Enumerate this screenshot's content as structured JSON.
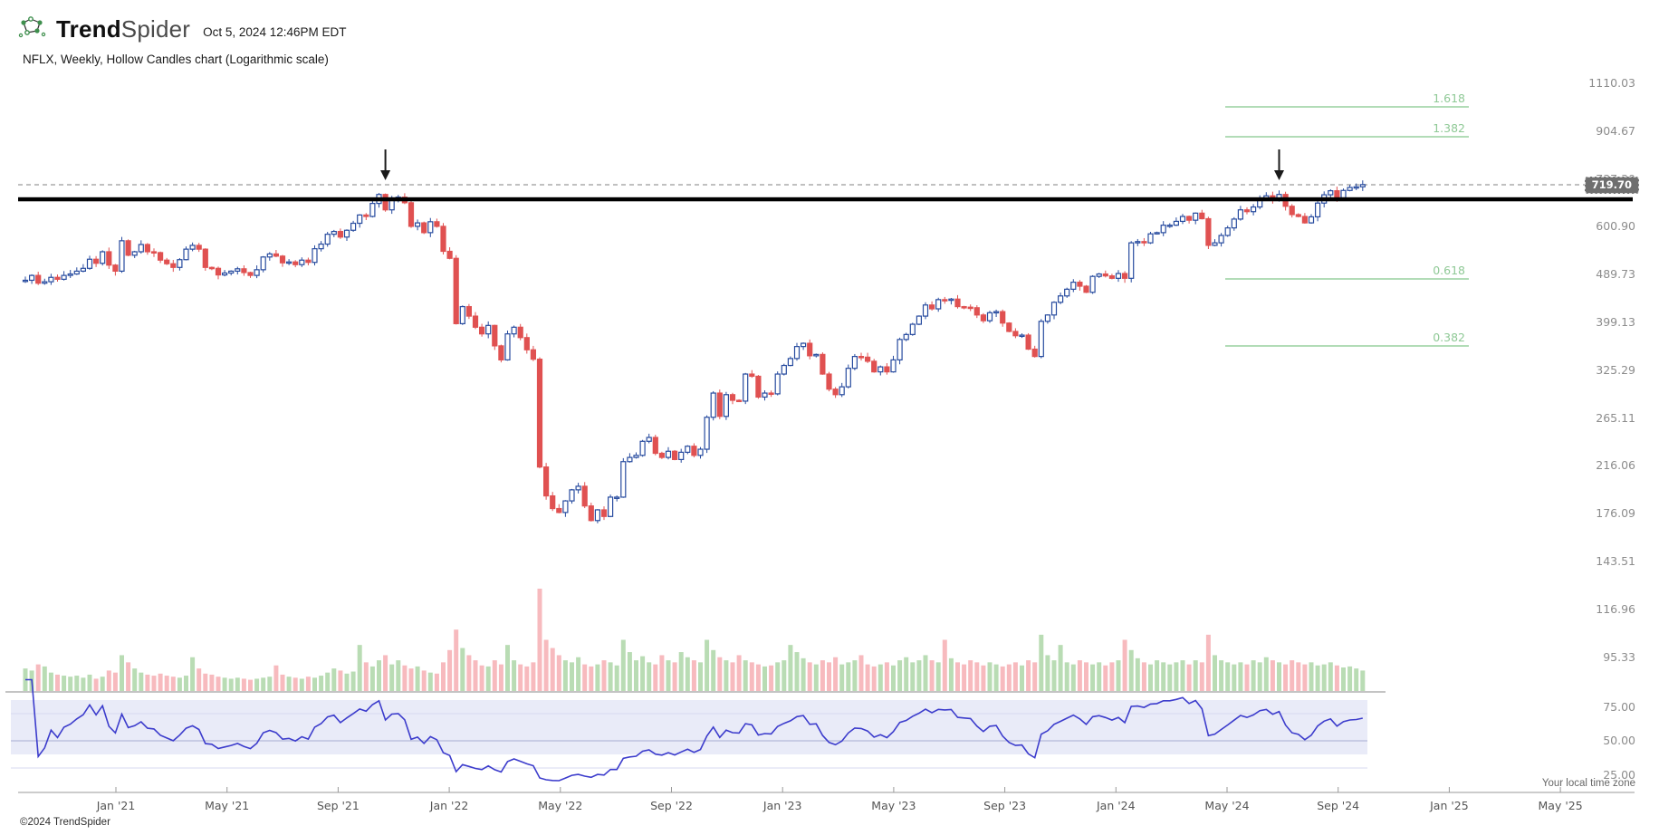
{
  "header": {
    "logo_trend": "Trend",
    "logo_spider": "Spider",
    "timestamp": "Oct 5, 2024 12:46PM EDT",
    "subtitle": "NFLX, Weekly, Hollow Candles chart (Logarithmic scale)"
  },
  "footer": {
    "timezone_note": "Your local time zone",
    "copyright": "©2024 TrendSpider"
  },
  "chart_data": {
    "type": "candlestick+volume+rsi",
    "symbol": "NFLX",
    "timeframe": "Weekly",
    "chart_style": "Hollow Candles",
    "scale": "Logarithmic",
    "last_price_label": "719.70",
    "price_axis_labels": [
      "1110.03",
      "904.67",
      "737.30",
      "600.90",
      "489.73",
      "399.13",
      "325.29",
      "265.11",
      "216.06",
      "176.09",
      "143.51",
      "116.96",
      "95.33"
    ],
    "rsi_axis_labels": [
      "75.00",
      "50.00",
      "25.00"
    ],
    "x_axis_labels": [
      "Jan '21",
      "May '21",
      "Sep '21",
      "Jan '22",
      "May '22",
      "Sep '22",
      "Jan '23",
      "May '23",
      "Sep '23",
      "Jan '24",
      "May '24",
      "Sep '24",
      "Jan '25",
      "May '25"
    ],
    "fib_levels": [
      "1.618",
      "1.382",
      "0.618",
      "0.382"
    ],
    "annotations": {
      "down_arrows_week_index": [
        56,
        195
      ],
      "horizontal_black_line": true,
      "last_price_dashed_line": true
    },
    "rsi_period": 14,
    "colors": {
      "candle_up": "#274b9f",
      "candle_down": "#e05151",
      "volume_up": "#b9dcb4",
      "volume_down": "#f7babe",
      "fib_line": "#a7d7ad",
      "fib_text": "#8fc996",
      "rsi_line": "#3c3ccc",
      "rsi_band": "#e9ebf8",
      "dashed_line": "#ababab",
      "black_line": "#000000"
    },
    "closes": [
      478,
      488,
      472,
      475,
      484,
      480,
      488,
      491,
      497,
      503,
      523,
      514,
      540,
      510,
      497,
      566,
      532,
      540,
      557,
      540,
      538,
      521,
      513,
      505,
      522,
      546,
      555,
      546,
      505,
      503,
      489,
      493,
      497,
      502,
      494,
      488,
      500,
      528,
      535,
      530,
      515,
      517,
      511,
      521,
      516,
      547,
      558,
      582,
      589,
      575,
      592,
      610,
      632,
      628,
      664,
      690,
      646,
      679,
      682,
      666,
      602,
      611,
      586,
      614,
      602,
      541,
      525,
      397,
      427,
      410,
      391,
      380,
      394,
      361,
      340,
      380,
      391,
      374,
      355,
      341,
      215,
      190,
      180,
      177,
      186,
      195,
      198,
      182,
      171,
      179,
      174,
      189,
      189,
      220,
      224,
      226,
      240,
      244,
      228,
      224,
      230,
      222,
      229,
      235,
      226,
      232,
      266,
      295,
      267,
      293,
      286,
      285,
      320,
      317,
      290,
      295,
      294,
      320,
      332,
      342,
      360,
      365,
      346,
      348,
      320,
      300,
      293,
      303,
      328,
      345,
      344,
      338,
      323,
      330,
      323,
      340,
      371,
      379,
      396,
      410,
      430,
      423,
      440,
      439,
      441,
      427,
      426,
      425,
      412,
      402,
      416,
      418,
      398,
      384,
      377,
      378,
      356,
      345,
      401,
      412,
      435,
      447,
      460,
      474,
      466,
      454,
      486,
      491,
      487,
      482,
      492,
      482,
      561,
      564,
      561,
      583,
      586,
      605,
      605,
      615,
      628,
      618,
      637,
      622,
      555,
      561,
      579,
      598,
      621,
      646,
      641,
      654,
      679,
      686,
      675,
      690,
      656,
      633,
      628,
      611,
      627,
      665,
      689,
      701,
      680,
      702,
      711,
      713,
      719.7
    ],
    "volumes": [
      0.22,
      0.2,
      0.26,
      0.24,
      0.18,
      0.16,
      0.15,
      0.14,
      0.15,
      0.13,
      0.16,
      0.12,
      0.14,
      0.2,
      0.18,
      0.35,
      0.28,
      0.22,
      0.18,
      0.16,
      0.15,
      0.17,
      0.15,
      0.14,
      0.13,
      0.15,
      0.33,
      0.22,
      0.17,
      0.16,
      0.14,
      0.13,
      0.12,
      0.13,
      0.12,
      0.11,
      0.12,
      0.13,
      0.14,
      0.25,
      0.16,
      0.14,
      0.13,
      0.12,
      0.14,
      0.13,
      0.15,
      0.18,
      0.22,
      0.2,
      0.17,
      0.19,
      0.45,
      0.28,
      0.24,
      0.3,
      0.35,
      0.26,
      0.3,
      0.25,
      0.22,
      0.24,
      0.2,
      0.18,
      0.17,
      0.28,
      0.4,
      0.6,
      0.42,
      0.35,
      0.3,
      0.25,
      0.24,
      0.3,
      0.26,
      0.45,
      0.3,
      0.26,
      0.24,
      0.28,
      1.0,
      0.5,
      0.42,
      0.35,
      0.3,
      0.28,
      0.33,
      0.26,
      0.24,
      0.26,
      0.3,
      0.28,
      0.25,
      0.5,
      0.38,
      0.3,
      0.34,
      0.28,
      0.26,
      0.35,
      0.3,
      0.28,
      0.38,
      0.33,
      0.3,
      0.28,
      0.5,
      0.4,
      0.33,
      0.3,
      0.28,
      0.35,
      0.3,
      0.28,
      0.26,
      0.24,
      0.25,
      0.28,
      0.3,
      0.45,
      0.38,
      0.32,
      0.28,
      0.26,
      0.3,
      0.28,
      0.33,
      0.26,
      0.28,
      0.3,
      0.35,
      0.26,
      0.24,
      0.26,
      0.28,
      0.25,
      0.3,
      0.33,
      0.28,
      0.3,
      0.35,
      0.3,
      0.28,
      0.5,
      0.32,
      0.28,
      0.26,
      0.3,
      0.28,
      0.25,
      0.28,
      0.26,
      0.24,
      0.26,
      0.28,
      0.25,
      0.3,
      0.28,
      0.55,
      0.35,
      0.3,
      0.45,
      0.28,
      0.26,
      0.3,
      0.28,
      0.26,
      0.28,
      0.25,
      0.28,
      0.3,
      0.5,
      0.4,
      0.32,
      0.28,
      0.26,
      0.3,
      0.28,
      0.26,
      0.28,
      0.3,
      0.26,
      0.3,
      0.28,
      0.55,
      0.35,
      0.3,
      0.28,
      0.26,
      0.28,
      0.26,
      0.3,
      0.28,
      0.33,
      0.3,
      0.28,
      0.26,
      0.3,
      0.28,
      0.26,
      0.28,
      0.25,
      0.26,
      0.28,
      0.25,
      0.23,
      0.24,
      0.22,
      0.2
    ]
  }
}
